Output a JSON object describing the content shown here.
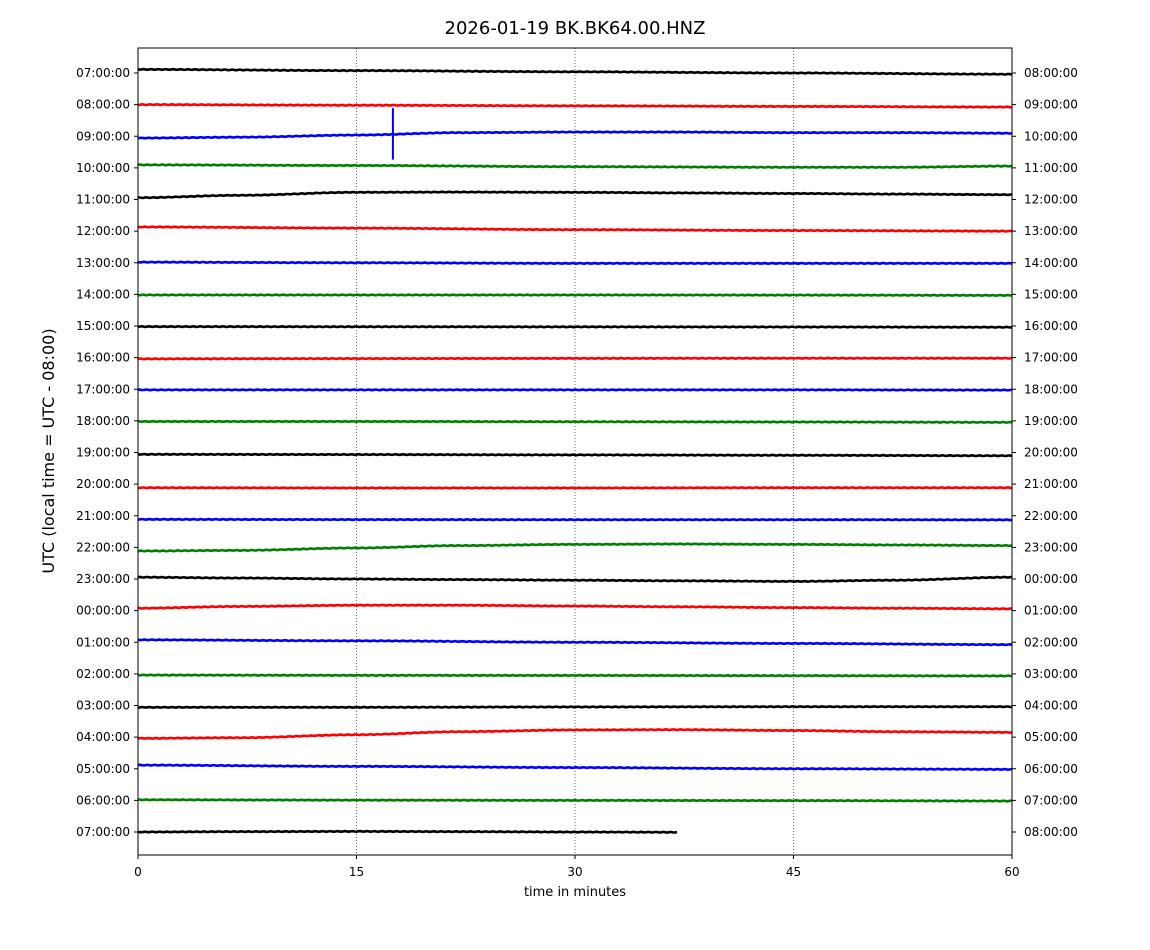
{
  "chart_data": {
    "type": "line",
    "title": "2026-01-19 BK.BK64.00.HNZ",
    "xlabel": "time in minutes",
    "ylabel": "UTC (local time = UTC - 08:00)",
    "xlim": [
      0,
      60
    ],
    "x_ticks": [
      "0",
      "15",
      "30",
      "45",
      "60"
    ],
    "x_grid": "vertical dotted lines at 15, 30, 45",
    "left_tick_labels": [
      "07:00:00",
      "08:00:00",
      "09:00:00",
      "10:00:00",
      "11:00:00",
      "12:00:00",
      "13:00:00",
      "14:00:00",
      "15:00:00",
      "16:00:00",
      "17:00:00",
      "18:00:00",
      "19:00:00",
      "20:00:00",
      "21:00:00",
      "22:00:00",
      "23:00:00",
      "00:00:00",
      "01:00:00",
      "02:00:00",
      "03:00:00",
      "04:00:00",
      "05:00:00",
      "06:00:00",
      "07:00:00"
    ],
    "right_tick_labels": [
      "08:00:00",
      "09:00:00",
      "10:00:00",
      "11:00:00",
      "12:00:00",
      "13:00:00",
      "14:00:00",
      "15:00:00",
      "16:00:00",
      "17:00:00",
      "18:00:00",
      "19:00:00",
      "20:00:00",
      "21:00:00",
      "22:00:00",
      "23:00:00",
      "00:00:00",
      "01:00:00",
      "02:00:00",
      "03:00:00",
      "04:00:00",
      "05:00:00",
      "06:00:00",
      "07:00:00",
      "08:00:00"
    ],
    "colors": [
      "#000000",
      "#ff0000",
      "#0000ff",
      "#008000"
    ],
    "series": [
      {
        "row": 0,
        "color": "#000000",
        "x": [
          0,
          15,
          30,
          45,
          60
        ],
        "offset": [
          -0.3,
          -0.2,
          -0.1,
          0.0,
          0.1
        ]
      },
      {
        "row": 1,
        "color": "#ff0000",
        "x": [
          0,
          15,
          30,
          45,
          60
        ],
        "offset": [
          0.0,
          0.05,
          0.1,
          0.15,
          0.2
        ]
      },
      {
        "row": 2,
        "color": "#0000ff",
        "x": [
          0,
          7,
          15,
          22,
          30,
          37,
          45,
          52,
          60
        ],
        "offset": [
          0.15,
          0.08,
          -0.1,
          -0.3,
          -0.35,
          -0.35,
          -0.3,
          -0.3,
          -0.25
        ],
        "spike": {
          "x": 17.5,
          "low": -0.9,
          "high": 0.75
        }
      },
      {
        "row": 3,
        "color": "#008000",
        "x": [
          0,
          15,
          30,
          45,
          52,
          60
        ],
        "offset": [
          -0.25,
          -0.2,
          -0.1,
          -0.05,
          -0.05,
          -0.15
        ]
      },
      {
        "row": 4,
        "color": "#000000",
        "x": [
          0,
          7,
          15,
          22,
          30,
          37,
          45,
          52,
          60
        ],
        "offset": [
          -0.15,
          -0.35,
          -0.6,
          -0.62,
          -0.6,
          -0.55,
          -0.5,
          -0.45,
          -0.4
        ]
      },
      {
        "row": 5,
        "color": "#ff0000",
        "x": [
          0,
          15,
          30,
          45,
          60
        ],
        "offset": [
          -0.35,
          -0.25,
          -0.12,
          -0.05,
          0.0
        ]
      },
      {
        "row": 6,
        "color": "#0000ff",
        "x": [
          0,
          15,
          30,
          45,
          60
        ],
        "offset": [
          -0.05,
          0.0,
          0.05,
          0.05,
          0.05
        ]
      },
      {
        "row": 7,
        "color": "#008000",
        "x": [
          0,
          15,
          30,
          45,
          60
        ],
        "offset": [
          0.05,
          0.05,
          0.05,
          0.06,
          0.08
        ]
      },
      {
        "row": 8,
        "color": "#000000",
        "x": [
          0,
          15,
          30,
          45,
          60
        ],
        "offset": [
          0.05,
          0.06,
          0.07,
          0.08,
          0.1
        ]
      },
      {
        "row": 9,
        "color": "#ff0000",
        "x": [
          0,
          15,
          30,
          45,
          60
        ],
        "offset": [
          0.1,
          0.08,
          0.06,
          0.05,
          0.05
        ]
      },
      {
        "row": 10,
        "color": "#0000ff",
        "x": [
          0,
          15,
          30,
          45,
          60
        ],
        "offset": [
          0.05,
          0.05,
          0.05,
          0.05,
          0.07
        ]
      },
      {
        "row": 11,
        "color": "#008000",
        "x": [
          0,
          15,
          30,
          45,
          60
        ],
        "offset": [
          0.05,
          0.05,
          0.07,
          0.09,
          0.12
        ]
      },
      {
        "row": 12,
        "color": "#000000",
        "x": [
          0,
          15,
          30,
          45,
          60
        ],
        "offset": [
          0.15,
          0.17,
          0.2,
          0.23,
          0.27
        ]
      },
      {
        "row": 13,
        "color": "#ff0000",
        "x": [
          0,
          15,
          30,
          45,
          60
        ],
        "offset": [
          0.3,
          0.32,
          0.32,
          0.3,
          0.3
        ]
      },
      {
        "row": 14,
        "color": "#0000ff",
        "x": [
          0,
          15,
          30,
          45,
          60
        ],
        "offset": [
          0.3,
          0.32,
          0.33,
          0.33,
          0.34
        ]
      },
      {
        "row": 15,
        "color": "#008000",
        "x": [
          0,
          7,
          15,
          22,
          30,
          37,
          45,
          52,
          60
        ],
        "offset": [
          0.3,
          0.25,
          0.05,
          -0.15,
          -0.25,
          -0.28,
          -0.25,
          -0.2,
          -0.15
        ]
      },
      {
        "row": 16,
        "color": "#000000",
        "x": [
          0,
          7,
          15,
          22,
          30,
          37,
          45,
          52,
          60
        ],
        "offset": [
          -0.15,
          -0.08,
          0.0,
          0.05,
          0.1,
          0.15,
          0.2,
          0.1,
          -0.15
        ]
      },
      {
        "row": 17,
        "color": "#ff0000",
        "x": [
          0,
          7,
          15,
          22,
          30,
          37,
          45,
          52,
          60
        ],
        "offset": [
          -0.2,
          -0.35,
          -0.45,
          -0.45,
          -0.38,
          -0.32,
          -0.25,
          -0.2,
          -0.15
        ]
      },
      {
        "row": 18,
        "color": "#0000ff",
        "x": [
          0,
          15,
          30,
          45,
          60
        ],
        "offset": [
          -0.2,
          -0.12,
          0.0,
          0.1,
          0.2
        ]
      },
      {
        "row": 19,
        "color": "#008000",
        "x": [
          0,
          15,
          30,
          45,
          60
        ],
        "offset": [
          0.1,
          0.12,
          0.13,
          0.15,
          0.17
        ]
      },
      {
        "row": 20,
        "color": "#000000",
        "x": [
          0,
          15,
          30,
          45,
          60
        ],
        "offset": [
          0.15,
          0.15,
          0.12,
          0.1,
          0.1
        ]
      },
      {
        "row": 21,
        "color": "#ff0000",
        "x": [
          0,
          7,
          15,
          22,
          30,
          37,
          45,
          52,
          60
        ],
        "offset": [
          0.1,
          0.05,
          -0.2,
          -0.45,
          -0.6,
          -0.62,
          -0.55,
          -0.45,
          -0.4
        ]
      },
      {
        "row": 22,
        "color": "#0000ff",
        "x": [
          0,
          15,
          30,
          45,
          60
        ],
        "offset": [
          -0.3,
          -0.2,
          -0.1,
          0.0,
          0.05
        ]
      },
      {
        "row": 23,
        "color": "#008000",
        "x": [
          0,
          15,
          30,
          45,
          60
        ],
        "offset": [
          -0.05,
          -0.02,
          0.0,
          0.02,
          0.05
        ]
      },
      {
        "row": 24,
        "color": "#000000",
        "x": [
          0,
          7,
          15,
          22,
          30,
          37
        ],
        "offset": [
          0.0,
          -0.03,
          -0.05,
          -0.03,
          0.0,
          0.02
        ]
      }
    ]
  }
}
